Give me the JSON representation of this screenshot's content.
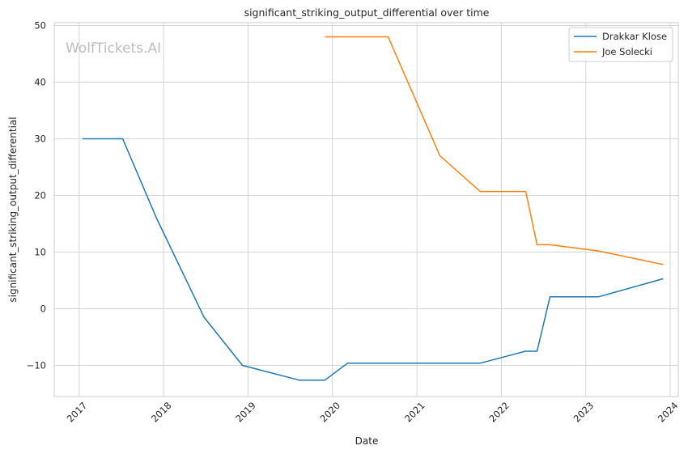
{
  "chart_data": {
    "type": "line",
    "title": "significant_striking_output_differential over time",
    "xlabel": "Date",
    "ylabel": "significant_striking_output_differential",
    "watermark": "WolfTickets.AI",
    "x_ticks": [
      "2017",
      "2018",
      "2019",
      "2020",
      "2021",
      "2022",
      "2023",
      "2024"
    ],
    "y_ticks": [
      "−10",
      "0",
      "10",
      "20",
      "30",
      "40",
      "50"
    ],
    "xlim": [
      "2016-09-15",
      "2024-02-05"
    ],
    "ylim": [
      -15.5,
      50.5
    ],
    "grid": true,
    "legend_position": "top-right",
    "series": [
      {
        "name": "Drakkar Klose",
        "color": "#1f77b4",
        "points": [
          [
            "2017-01-15",
            30
          ],
          [
            "2017-07-08",
            30
          ],
          [
            "2017-12-01",
            16
          ],
          [
            "2018-06-25",
            -1.5
          ],
          [
            "2018-12-08",
            -10
          ],
          [
            "2019-08-10",
            -12.6
          ],
          [
            "2019-11-30",
            -12.6
          ],
          [
            "2020-03-07",
            -9.6
          ],
          [
            "2021-10-02",
            -9.6
          ],
          [
            "2022-04-15",
            -7.5
          ],
          [
            "2022-06-04",
            -7.5
          ],
          [
            "2022-07-30",
            2.1
          ],
          [
            "2023-02-25",
            2.1
          ],
          [
            "2023-12-02",
            5.3
          ]
        ]
      },
      {
        "name": "Joe Solecki",
        "color": "#ff7f0e",
        "points": [
          [
            "2019-12-01",
            48
          ],
          [
            "2020-08-29",
            48
          ],
          [
            "2021-04-10",
            27
          ],
          [
            "2021-10-01",
            20.7
          ],
          [
            "2022-04-16",
            20.7
          ],
          [
            "2022-06-04",
            11.3
          ],
          [
            "2022-07-30",
            11.3
          ],
          [
            "2023-02-25",
            10.2
          ],
          [
            "2023-12-02",
            7.8
          ]
        ]
      }
    ]
  }
}
